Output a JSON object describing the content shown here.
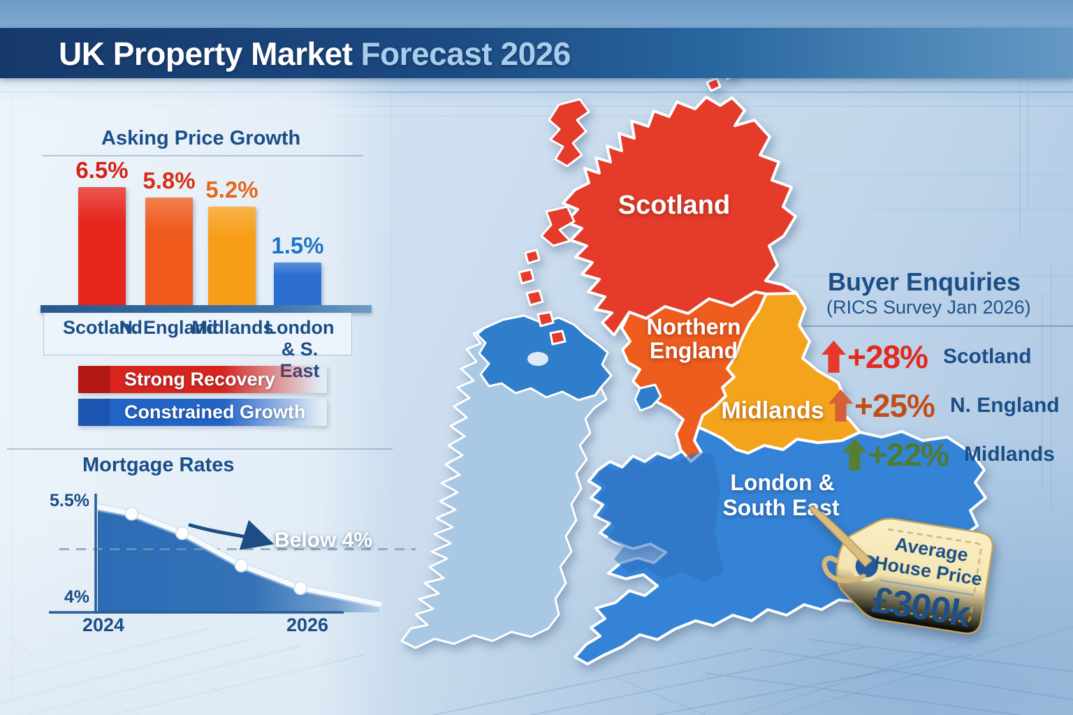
{
  "header": {
    "title_main": "UK Property Market",
    "title_accent": "Forecast 2026"
  },
  "chart_data": [
    {
      "type": "bar",
      "title": "Asking Price Growth",
      "categories": [
        "Scotland",
        "N. England",
        "Midlands",
        "London\n& S. East"
      ],
      "values": [
        6.5,
        5.8,
        5.2,
        1.5
      ],
      "value_labels": [
        "6.5%",
        "5.8%",
        "5.2%",
        "1.5%"
      ],
      "bar_colors": [
        "#e6251d",
        "#ef5a1c",
        "#f79e18",
        "#2d6fd0"
      ],
      "label_colors": [
        "#d42017",
        "#d33016",
        "#e2671a",
        "#1e74c8"
      ],
      "ylabel": "",
      "ylim": [
        0,
        7
      ],
      "grid": false
    },
    {
      "type": "line",
      "title": "Mortgage Rates",
      "x_labels": [
        "2024",
        "2026"
      ],
      "x": [
        0,
        0.12,
        0.3,
        0.51,
        0.72,
        1
      ],
      "values": [
        5.4,
        5.3,
        5.0,
        4.5,
        4.15,
        3.9
      ],
      "y_tick_labels": [
        "5.5%",
        "4%"
      ],
      "ylim": [
        3.8,
        5.6
      ],
      "dashed_level": 4.75,
      "annotation": "Below 4%",
      "line_color": "#f6fafd",
      "area_color": "#2b6cb4",
      "grid": false
    }
  ],
  "legend": {
    "items": [
      {
        "label": "Strong Recovery",
        "color": "#d7251e",
        "chip": "#b21713"
      },
      {
        "label": "Constrained Growth",
        "color": "#2263c6",
        "chip": "#1c55b0"
      }
    ]
  },
  "map": {
    "labels": {
      "scotland": "Scotland",
      "n_england_1": "Northern",
      "n_england_2": "England",
      "midlands": "Midlands",
      "london_1": "London &",
      "london_2": "South East"
    },
    "region_colors": {
      "scotland": "#e43b2a",
      "northern_england": "#ee5c1e",
      "midlands": "#f4a41c",
      "london_south_east": "#3583d6",
      "wales_tint": "#2e6fbf",
      "ireland": "#a9c8e4",
      "northern_ireland": "#2f7ecb",
      "isle_of_man": "#2f7ecb"
    }
  },
  "enquiries": {
    "title": "Buyer Enquiries",
    "subtitle": "(RICS Survey Jan 2026)",
    "rows": [
      {
        "value": "+28%",
        "region": "Scotland",
        "color": "#e02b1d",
        "arrow_color": "#e6392b",
        "indent": 26
      },
      {
        "value": "+25%",
        "region": "N. England",
        "color": "#bf4f17",
        "arrow_color": "#d75f38",
        "indent": 36
      },
      {
        "value": "+22%",
        "region": "Midlands",
        "color": "#4d7b31",
        "arrow_color": "#557f37",
        "indent": 56
      }
    ]
  },
  "price_tag": {
    "line1": "Average",
    "line2": "House Price",
    "price": "£300k",
    "tag_color": "#f6e8ba",
    "text_color": "#1d5186"
  }
}
